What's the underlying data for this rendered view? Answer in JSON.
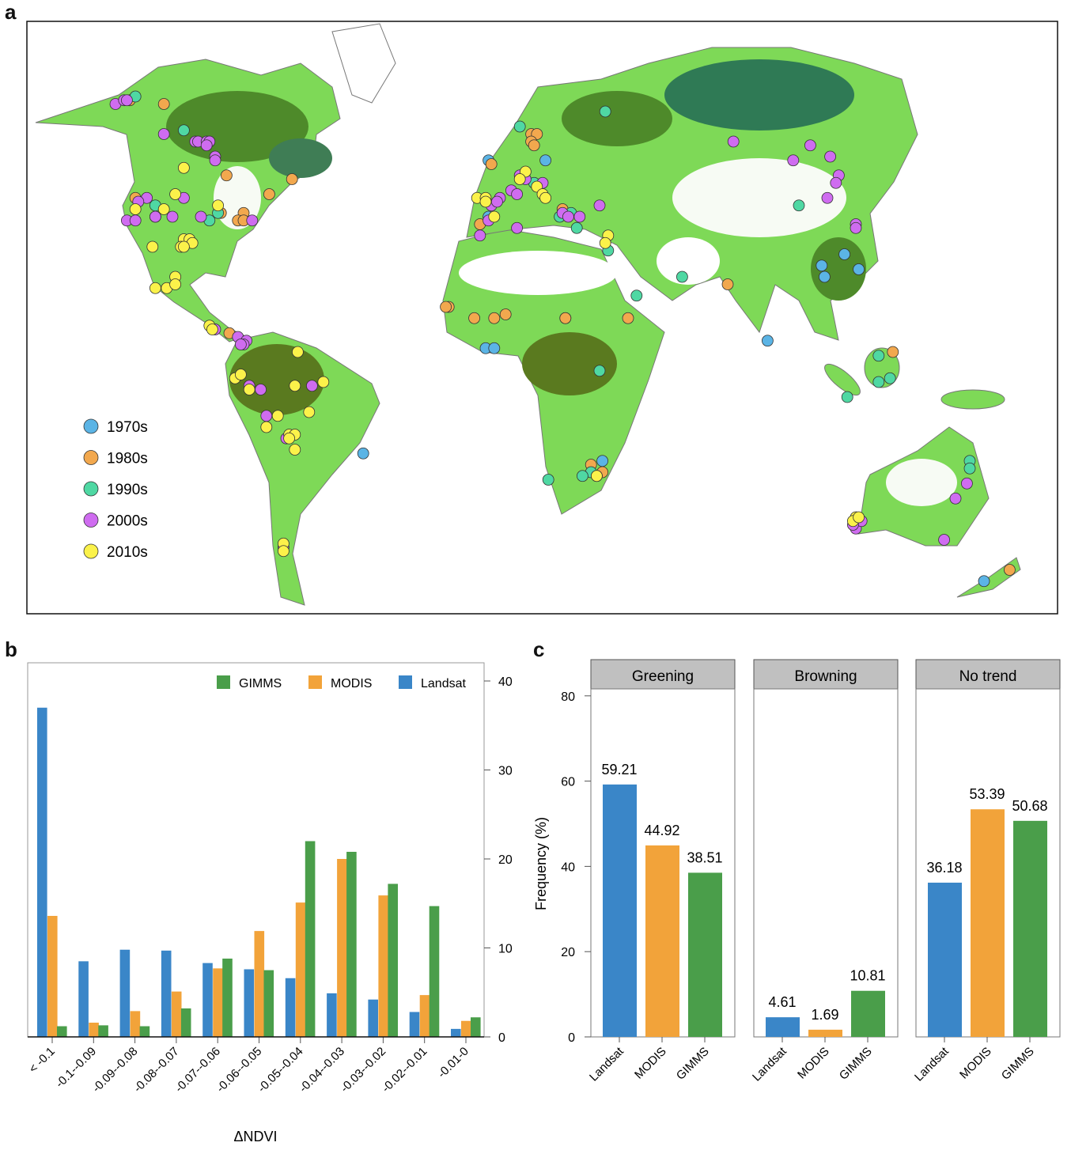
{
  "panels": {
    "a": "a",
    "b": "b",
    "c": "c"
  },
  "colors": {
    "1970s": "#5bb4e5",
    "1980s": "#f2a84e",
    "1990s": "#4fd8a3",
    "2000s": "#cf6cf0",
    "2010s": "#fbf24a",
    "Landsat": "#3a86c8",
    "MODIS": "#f2a33a",
    "GIMMS": "#4a9e4a"
  },
  "map": {
    "legend": [
      "1970s",
      "1980s",
      "1990s",
      "2000s",
      "2010s"
    ],
    "sites": {
      "1970s": [
        [
          -19,
          51
        ],
        [
          1,
          51
        ],
        [
          -19,
          36
        ],
        [
          79,
          3
        ],
        [
          -20,
          1
        ],
        [
          -17,
          1
        ],
        [
          106,
          26
        ],
        [
          98,
          23
        ],
        [
          99,
          20
        ],
        [
          111,
          22
        ],
        [
          21,
          -29
        ],
        [
          -63,
          -27
        ],
        [
          155,
          -61
        ]
      ],
      "1980s": [
        [
          -145,
          67
        ],
        [
          -133,
          66
        ],
        [
          -111,
          47
        ],
        [
          -88,
          46
        ],
        [
          -96,
          42
        ],
        [
          -143,
          41
        ],
        [
          -113,
          37
        ],
        [
          -105,
          37
        ],
        [
          -107,
          35
        ],
        [
          -105,
          35
        ],
        [
          -110,
          5
        ],
        [
          -4,
          58
        ],
        [
          -2,
          58
        ],
        [
          -4,
          56
        ],
        [
          -3,
          55
        ],
        [
          -18,
          50
        ],
        [
          -22,
          34
        ],
        [
          7,
          38
        ],
        [
          65,
          18
        ],
        [
          -33,
          12
        ],
        [
          -34,
          12
        ],
        [
          -24,
          9
        ],
        [
          -17,
          9
        ],
        [
          -13,
          10
        ],
        [
          8,
          9
        ],
        [
          8,
          9
        ],
        [
          30,
          9
        ],
        [
          17,
          -30
        ],
        [
          21,
          -32
        ],
        [
          123,
          0
        ],
        [
          164,
          -58
        ]
      ],
      "1990s": [
        [
          -143,
          68
        ],
        [
          -126,
          59
        ],
        [
          -136,
          39
        ],
        [
          -136,
          36
        ],
        [
          -114,
          37
        ],
        [
          -117,
          35
        ],
        [
          22,
          64
        ],
        [
          -8,
          60
        ],
        [
          -3,
          45
        ],
        [
          10,
          37
        ],
        [
          6,
          36
        ],
        [
          12,
          33
        ],
        [
          23,
          27
        ],
        [
          49,
          20
        ],
        [
          33,
          15
        ],
        [
          90,
          39
        ],
        [
          20,
          -5
        ],
        [
          17,
          -32
        ],
        [
          14,
          -33
        ],
        [
          2,
          -34
        ],
        [
          118,
          -1
        ],
        [
          118,
          -8
        ],
        [
          122,
          -7
        ],
        [
          107,
          -12
        ],
        [
          150,
          -29
        ],
        [
          150,
          -31
        ]
      ],
      "2000s": [
        [
          -150,
          66
        ],
        [
          -147,
          67
        ],
        [
          -146,
          67
        ],
        [
          -133,
          58
        ],
        [
          -122,
          56
        ],
        [
          -121,
          56
        ],
        [
          -118,
          56
        ],
        [
          -117,
          56
        ],
        [
          -118,
          55
        ],
        [
          -115,
          52
        ],
        [
          -115,
          51
        ],
        [
          -139,
          41
        ],
        [
          -142,
          40
        ],
        [
          -126,
          41
        ],
        [
          -130,
          36
        ],
        [
          -136,
          36
        ],
        [
          -146,
          35
        ],
        [
          -143,
          35
        ],
        [
          -120,
          36
        ],
        [
          -102,
          35
        ],
        [
          -115,
          6
        ],
        [
          -107,
          4
        ],
        [
          -104,
          3
        ],
        [
          -105,
          2
        ],
        [
          -106,
          2
        ],
        [
          -103,
          -9
        ],
        [
          -99,
          -10
        ],
        [
          -81,
          -9
        ],
        [
          -97,
          -17
        ],
        [
          -90,
          -23
        ],
        [
          -91,
          -52
        ],
        [
          -8,
          47
        ],
        [
          -6,
          46
        ],
        [
          0,
          45
        ],
        [
          -11,
          43
        ],
        [
          -9,
          42
        ],
        [
          -15,
          41
        ],
        [
          -18,
          39
        ],
        [
          -16,
          40
        ],
        [
          -19,
          35
        ],
        [
          -22,
          31
        ],
        [
          -9,
          33
        ],
        [
          7,
          37
        ],
        [
          9,
          36
        ],
        [
          13,
          36
        ],
        [
          20,
          39
        ],
        [
          67,
          56
        ],
        [
          94,
          55
        ],
        [
          88,
          51
        ],
        [
          101,
          52
        ],
        [
          104,
          47
        ],
        [
          103,
          45
        ],
        [
          100,
          41
        ],
        [
          110,
          34
        ],
        [
          110,
          33
        ],
        [
          149,
          -35
        ],
        [
          145,
          -39
        ],
        [
          141,
          -50
        ],
        [
          110,
          -47
        ],
        [
          112,
          -45
        ],
        [
          109,
          -46
        ]
      ],
      "2010s": [
        [
          -126,
          49
        ],
        [
          -129,
          42
        ],
        [
          -133,
          38
        ],
        [
          -143,
          38
        ],
        [
          -114,
          39
        ],
        [
          -126,
          30
        ],
        [
          -124,
          30
        ],
        [
          -127,
          28
        ],
        [
          -123,
          29
        ],
        [
          -126,
          28
        ],
        [
          -137,
          28
        ],
        [
          -136,
          17
        ],
        [
          -132,
          17
        ],
        [
          -129,
          20
        ],
        [
          -129,
          18
        ],
        [
          -117,
          7
        ],
        [
          -116,
          6
        ],
        [
          -86,
          0
        ],
        [
          -108,
          -7
        ],
        [
          -106,
          -6
        ],
        [
          -87,
          -9
        ],
        [
          -77,
          -8
        ],
        [
          -82,
          -16
        ],
        [
          -93,
          -17
        ],
        [
          -97,
          -20
        ],
        [
          -89,
          -22
        ],
        [
          -87,
          -22
        ],
        [
          -89,
          -23
        ],
        [
          -87,
          -26
        ],
        [
          -103,
          -10
        ],
        [
          -91,
          -51
        ],
        [
          -91,
          -53
        ],
        [
          -6,
          48
        ],
        [
          -8,
          46
        ],
        [
          -2,
          44
        ],
        [
          0,
          42
        ],
        [
          1,
          41
        ],
        [
          -23,
          41
        ],
        [
          -20,
          41
        ],
        [
          -20,
          40
        ],
        [
          -17,
          36
        ],
        [
          23,
          31
        ],
        [
          22,
          29
        ],
        [
          19,
          -33
        ],
        [
          19,
          -33
        ],
        [
          110,
          -44
        ],
        [
          109,
          -45
        ],
        [
          111,
          -44
        ]
      ]
    }
  },
  "chart_data": [
    {
      "type": "bar",
      "panel": "b",
      "xlabel": "ΔNDVI",
      "ylabel": "",
      "ylim": [
        0,
        42
      ],
      "y_axis_side": "right",
      "yticks": [
        0,
        10,
        20,
        30,
        40
      ],
      "legend_position": "top-right",
      "categories": [
        "< -0.1",
        "-0.1--0.09",
        "-0.09--0.08",
        "-0.08--0.07",
        "-0.07--0.06",
        "-0.06--0.05",
        "-0.05--0.04",
        "-0.04--0.03",
        "-0.03--0.02",
        "-0.02--0.01",
        "-0.01-0"
      ],
      "series": [
        {
          "name": "Landsat",
          "values": [
            37.0,
            8.5,
            9.8,
            9.7,
            8.3,
            7.6,
            6.6,
            4.9,
            4.2,
            2.8,
            0.9
          ]
        },
        {
          "name": "MODIS",
          "values": [
            13.6,
            1.6,
            2.9,
            5.1,
            7.7,
            11.9,
            15.1,
            20.0,
            15.9,
            4.7,
            1.8
          ]
        },
        {
          "name": "GIMMS",
          "values": [
            1.2,
            1.3,
            1.2,
            3.2,
            8.8,
            7.5,
            22.0,
            20.8,
            17.2,
            14.7,
            2.2
          ]
        }
      ],
      "legend_order": [
        "GIMMS",
        "MODIS",
        "Landsat"
      ]
    },
    {
      "type": "bar",
      "panel": "c",
      "ylabel": "Frequency (%)",
      "ylim": [
        0,
        80
      ],
      "yticks": [
        0,
        20,
        40,
        60,
        80
      ],
      "categories": [
        "Landsat",
        "MODIS",
        "GIMMS"
      ],
      "facets": [
        {
          "title": "Greening",
          "values": [
            59.21,
            44.92,
            38.51
          ],
          "labels": [
            "59.21",
            "44.92",
            "38.51"
          ]
        },
        {
          "title": "Browning",
          "values": [
            4.61,
            1.69,
            10.81
          ],
          "labels": [
            "4.61",
            "1.69",
            "10.81"
          ]
        },
        {
          "title": "No trend",
          "values": [
            36.18,
            53.39,
            50.68
          ],
          "labels": [
            "36.18",
            "53.39",
            "50.68"
          ]
        }
      ]
    }
  ]
}
